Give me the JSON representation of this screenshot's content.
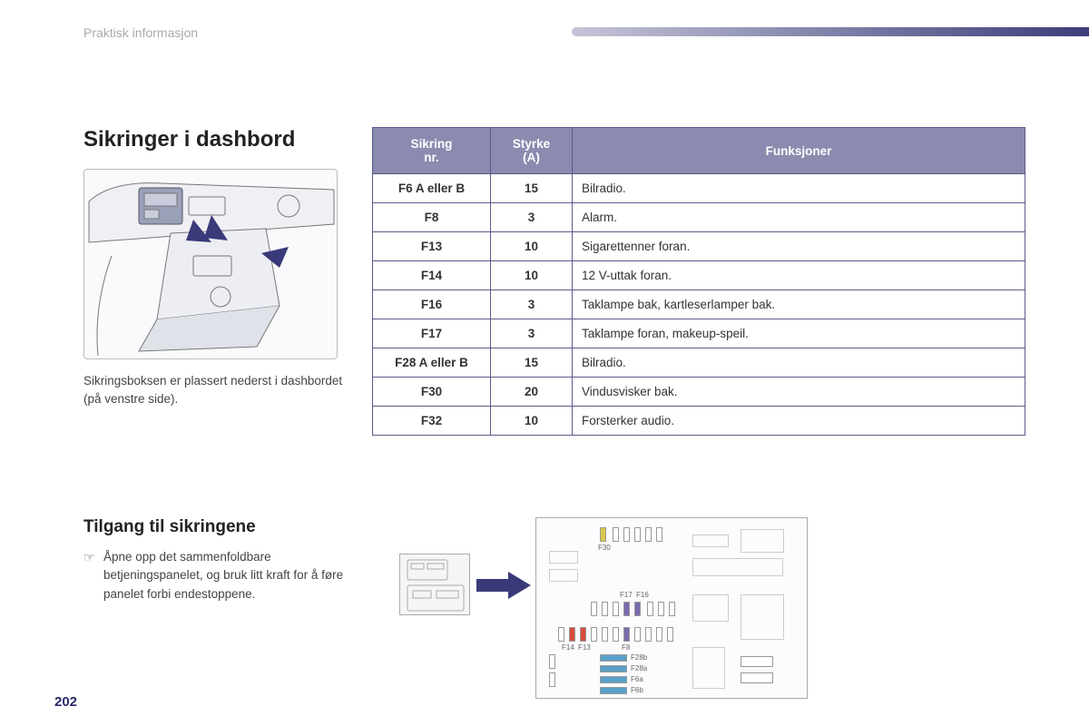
{
  "page": {
    "section_label": "Praktisk informasjon",
    "page_number": "202"
  },
  "main": {
    "title": "Sikringer i dashbord",
    "caption": "Sikringsboksen er plassert nederst i dashbordet (på venstre side)."
  },
  "table": {
    "headers": {
      "col1": "Sikring\nnr.",
      "col2": "Styrke\n(A)",
      "col3": "Funksjoner"
    },
    "rows": [
      {
        "nr": "F6 A eller B",
        "a": "15",
        "fn": "Bilradio."
      },
      {
        "nr": "F8",
        "a": "3",
        "fn": "Alarm."
      },
      {
        "nr": "F13",
        "a": "10",
        "fn": "Sigarettenner foran."
      },
      {
        "nr": "F14",
        "a": "10",
        "fn": "12 V-uttak foran."
      },
      {
        "nr": "F16",
        "a": "3",
        "fn": "Taklampe bak, kartleserlamper bak."
      },
      {
        "nr": "F17",
        "a": "3",
        "fn": "Taklampe foran, makeup-speil."
      },
      {
        "nr": "F28 A eller B",
        "a": "15",
        "fn": "Bilradio."
      },
      {
        "nr": "F30",
        "a": "20",
        "fn": "Vindusvisker bak."
      },
      {
        "nr": "F32",
        "a": "10",
        "fn": "Forsterker audio."
      }
    ]
  },
  "access": {
    "subtitle": "Tilgang til sikringene",
    "instruction": "Åpne opp det sammenfoldbare betjeningspanelet, og bruk litt kraft for å føre panelet forbi endestoppene."
  },
  "diagram_labels": {
    "f30": "F30",
    "f17": "F17",
    "f16": "F16",
    "f14": "F14",
    "f13": "F13",
    "f8": "F8",
    "f28b": "F28b",
    "f28a": "F28a",
    "f6a": "F6a",
    "f6b": "F6b"
  },
  "colors": {
    "header_bg": "#8b8bb0",
    "border": "#5a5a8a",
    "accent": "#2a2a6a",
    "fuse_red": "#d94a3a",
    "fuse_blue": "#5aa0c8",
    "fuse_purple": "#7a6aaa",
    "fuse_yellow": "#d8c84a",
    "arrow": "#3a3a7a"
  },
  "table_style": {
    "col_widths": [
      "130px",
      "90px",
      "auto"
    ],
    "header_fontsize": 13.5,
    "cell_fontsize": 13.5
  }
}
